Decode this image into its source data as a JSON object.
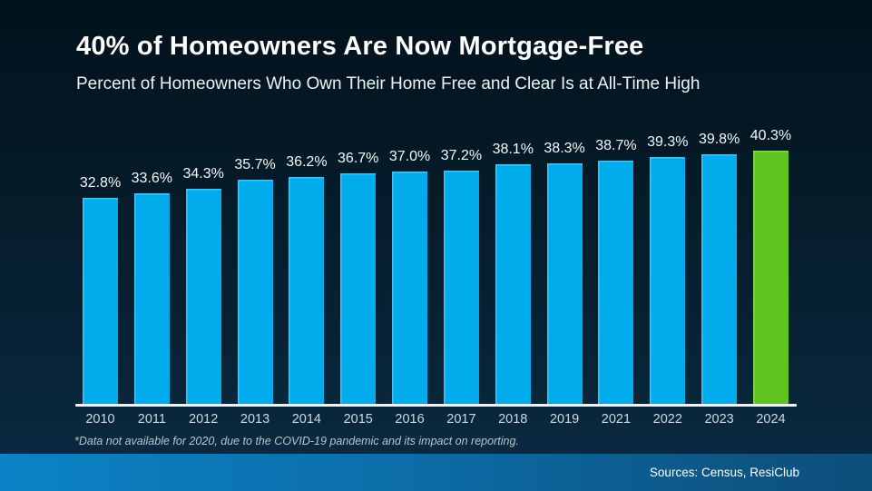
{
  "page": {
    "title": "40% of Homeowners Are Now Mortgage-Free",
    "subtitle": "Percent of Homeowners Who Own Their Home Free and Clear Is at All-Time High",
    "footnote": "*Data not available for 2020, due to the COVID-19 pandemic and its impact on reporting.",
    "sources": "Sources: Census, ResiClub"
  },
  "chart_data": {
    "type": "bar",
    "title": "40% of Homeowners Are Now Mortgage-Free",
    "subtitle": "Percent of Homeowners Who Own Their Home Free and Clear Is at All-Time High",
    "categories": [
      "2010",
      "2011",
      "2012",
      "2013",
      "2014",
      "2015",
      "2016",
      "2017",
      "2018",
      "2019",
      "2021",
      "2022",
      "2023",
      "2024"
    ],
    "values": [
      32.8,
      33.6,
      34.3,
      35.7,
      36.2,
      36.7,
      37.0,
      37.2,
      38.1,
      38.3,
      38.7,
      39.3,
      39.8,
      40.3
    ],
    "labels": [
      "32.8%",
      "33.6%",
      "34.3%",
      "35.7%",
      "36.2%",
      "36.7%",
      "37.0%",
      "37.2%",
      "38.1%",
      "38.3%",
      "38.7%",
      "39.3%",
      "39.8%",
      "40.3%"
    ],
    "xlabel": "",
    "ylabel": "",
    "ylim": [
      0,
      40.3
    ],
    "grid": false,
    "legend": "none",
    "highlight_index": 13,
    "note": "*Data not available for 2020, due to the COVID-19 pandemic and its impact on reporting.",
    "sources": "Sources: Census, ResiClub",
    "colors": {
      "bar": "#00ACEC",
      "highlight": "#5FC41E",
      "axis": "#EEF2F4",
      "background_top": "#02121C",
      "background_bottom": "#0B2B43",
      "source_band_left": "#0B83C6",
      "source_band_right": "#0D4F7B",
      "text": "#FFFFFF"
    }
  }
}
